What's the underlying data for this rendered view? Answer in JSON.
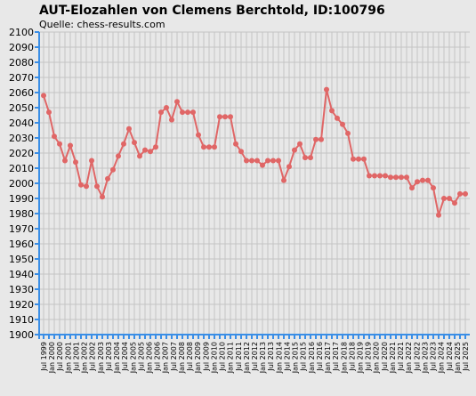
{
  "chart_data": {
    "type": "line",
    "title": "AUT-Elozahlen von Clemens Berchtold, ID:100796",
    "subtitle": "Quelle: chess-results.com",
    "xlabel": "",
    "ylabel": "",
    "ylim": [
      1900,
      2100
    ],
    "y_ticks": [
      1900,
      1910,
      1920,
      1930,
      1940,
      1950,
      1960,
      1970,
      1980,
      1990,
      2000,
      2010,
      2020,
      2030,
      2040,
      2050,
      2060,
      2070,
      2080,
      2090,
      2100
    ],
    "grid": true,
    "legend": "none",
    "line_color": "#e06666",
    "x_labels": [
      "Jul 1999",
      "Jan 2000",
      "Jul 2000",
      "Jan 2001",
      "Jul 2001",
      "Jan 2002",
      "Jul 2002",
      "Jan 2003",
      "Jul 2003",
      "Jan 2004",
      "Jul 2004",
      "Jan 2005",
      "Jul 2005",
      "Jan 2006",
      "Jul 2006",
      "Jan 2007",
      "Jul 2007",
      "Jan 2008",
      "Jul 2008",
      "Jan 2009",
      "Jul 2009",
      "Jan 2010",
      "Jul 2010",
      "Jan 2011",
      "Jul 2011",
      "Jan 2012",
      "Jul 2012",
      "Jan 2013",
      "Jul 2013",
      "Jan 2014",
      "Jul 2014",
      "Jan 2015",
      "Jul 2015",
      "Jan 2016",
      "Jul 2016",
      "Jan 2017",
      "Jul 2017",
      "Jan 2018",
      "Jul 2018",
      "Jan 2019",
      "Jul 2019",
      "Jan 2020",
      "Jul 2020",
      "Jan 2021",
      "Jul 2021",
      "Jan 2022",
      "Jul 2022",
      "Jan 2023",
      "Jul 2023",
      "Jan 2024",
      "Jul 2024",
      "Jan 2025",
      "Jul 2025"
    ],
    "values": [
      2058,
      2047,
      2031,
      2026,
      2015,
      2025,
      2014,
      1999,
      1998,
      2015,
      1998,
      1991,
      2003,
      2009,
      2018,
      2026,
      2036,
      2027,
      2018,
      2022,
      2021,
      2024,
      2047,
      2050,
      2042,
      2054,
      2047,
      2047,
      2047,
      2032,
      2024,
      2024,
      2024,
      2044,
      2044,
      2044,
      2026,
      2021,
      2015,
      2015,
      2015,
      2012,
      2015,
      2015,
      2015,
      2002,
      2011,
      2022,
      2026,
      2017,
      2017,
      2029,
      2029,
      2062,
      2048,
      2043,
      2039,
      2033,
      2016,
      2016,
      2016,
      2005,
      2005,
      2005,
      2005,
      2004,
      2004,
      2004,
      2004,
      1997,
      2001,
      2002,
      2002,
      1997,
      1979,
      1990,
      1990,
      1987,
      1993,
      1993
    ]
  }
}
